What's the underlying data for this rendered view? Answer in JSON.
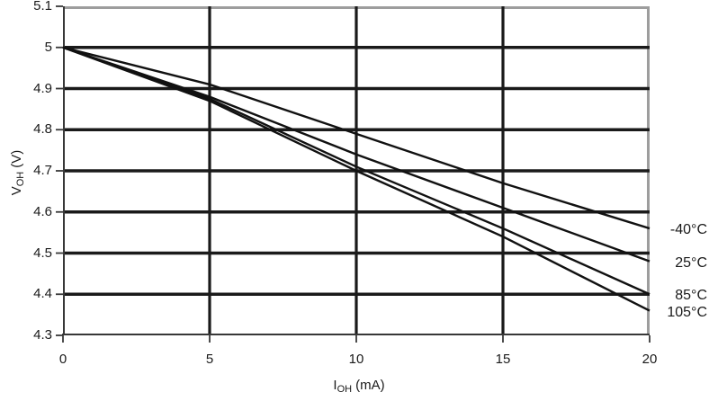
{
  "chart_data": {
    "type": "line",
    "title": "",
    "xlabel_main": "I",
    "xlabel_sub": "OH",
    "xlabel_unit": "(mA)",
    "ylabel_main": "V",
    "ylabel_sub": "OH",
    "ylabel_unit": "(V)",
    "xlim": [
      0,
      20
    ],
    "ylim": [
      4.3,
      5.1
    ],
    "xticks": [
      0,
      5,
      10,
      15,
      20
    ],
    "yticks": [
      5.1,
      5.0,
      4.9,
      4.8,
      4.7,
      4.6,
      4.5,
      4.4,
      4.3
    ],
    "xtick_labels": [
      "0",
      "5",
      "10",
      "15",
      "20"
    ],
    "ytick_labels": [
      "5.1",
      "5",
      "4.9",
      "4.8",
      "4.7",
      "4.6",
      "4.5",
      "4.4",
      "4.3"
    ],
    "grid": true,
    "legend_position": "right-outside",
    "x": [
      0,
      5,
      10,
      15,
      20
    ],
    "series": [
      {
        "name": "-40°C",
        "values": [
          5.0,
          4.91,
          4.79,
          4.67,
          4.56
        ]
      },
      {
        "name": "25°C",
        "values": [
          5.0,
          4.88,
          4.74,
          4.61,
          4.48
        ]
      },
      {
        "name": "85°C",
        "values": [
          5.0,
          4.875,
          4.71,
          4.56,
          4.4
        ]
      },
      {
        "name": "105°C",
        "values": [
          5.0,
          4.87,
          4.7,
          4.54,
          4.36
        ]
      }
    ],
    "colors": {
      "line": "#111111",
      "grid": "#1a1a1a",
      "outer_border": "#9d9d9d",
      "axis": "#383838",
      "text": "#1a1a1a"
    }
  }
}
